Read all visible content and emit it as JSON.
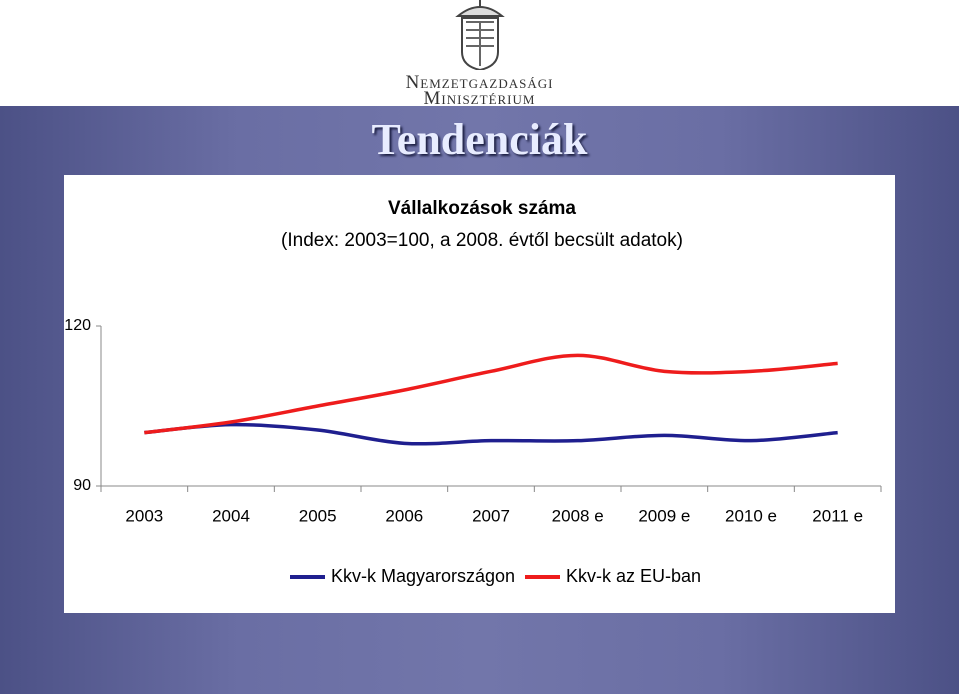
{
  "header": {
    "ministry": [
      "Nemzetgazdasági",
      "Minisztérium"
    ],
    "title": "Tendenciák"
  },
  "chart_data": {
    "type": "line",
    "title": "Vállalkozások száma",
    "subtitle": "(Index: 2003=100, a 2008. évtől becsült adatok)",
    "categories": [
      "2003",
      "2004",
      "2005",
      "2006",
      "2007",
      "2008 e",
      "2009 e",
      "2010 e",
      "2011 e"
    ],
    "series": [
      {
        "name": "Kkv-k Magyarországon",
        "color": "#1f1f8f",
        "values": [
          100,
          101.5,
          100.5,
          98,
          98.5,
          98.5,
          99.5,
          98.5,
          100
        ]
      },
      {
        "name": "Kkv-k az EU-ban",
        "color": "#ee1c1c",
        "values": [
          100,
          102,
          105,
          108,
          111.5,
          114.5,
          111.5,
          111.5,
          113
        ]
      }
    ],
    "ylim": [
      90,
      120
    ],
    "yticks": [
      90,
      120
    ],
    "legend": "bottom"
  }
}
